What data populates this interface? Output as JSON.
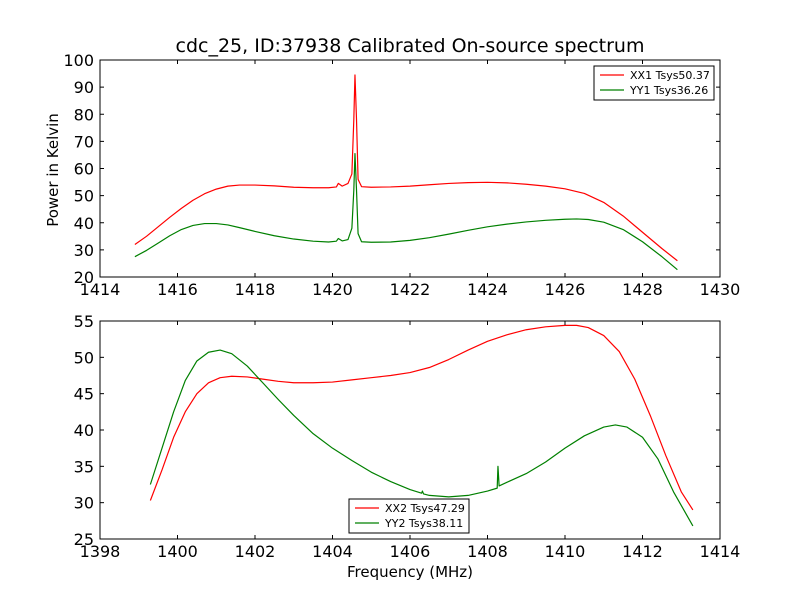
{
  "figure": {
    "title": "cdc_25, ID:37938 Calibrated On-source spectrum",
    "xlabel": "Frequency (MHz)",
    "ylabel": "Power in Kelvin"
  },
  "chart_data": [
    {
      "type": "line",
      "title": "cdc_25, ID:37938 Calibrated On-source spectrum",
      "xlabel": "",
      "ylabel": "Power in Kelvin",
      "xlim": [
        1414,
        1430
      ],
      "ylim": [
        20,
        100
      ],
      "xticks": [
        1414,
        1416,
        1418,
        1420,
        1422,
        1424,
        1426,
        1428,
        1430
      ],
      "yticks": [
        20,
        30,
        40,
        50,
        60,
        70,
        80,
        90,
        100
      ],
      "grid": false,
      "legend_position": "top-right",
      "series": [
        {
          "name": "XX1 Tsys50.37",
          "color": "#ff0000",
          "points": [
            [
              1414.9,
              32
            ],
            [
              1415.2,
              35
            ],
            [
              1415.5,
              38.5
            ],
            [
              1415.8,
              42
            ],
            [
              1416.1,
              45.3
            ],
            [
              1416.4,
              48.3
            ],
            [
              1416.7,
              50.7
            ],
            [
              1417.0,
              52.4
            ],
            [
              1417.3,
              53.5
            ],
            [
              1417.6,
              53.9
            ],
            [
              1418.0,
              53.9
            ],
            [
              1418.5,
              53.6
            ],
            [
              1419.0,
              53.1
            ],
            [
              1419.5,
              52.9
            ],
            [
              1419.9,
              52.9
            ],
            [
              1420.1,
              53.2
            ],
            [
              1420.15,
              54.5
            ],
            [
              1420.25,
              53.5
            ],
            [
              1420.4,
              54.5
            ],
            [
              1420.5,
              58
            ],
            [
              1420.55,
              78
            ],
            [
              1420.58,
              94.5
            ],
            [
              1420.62,
              78
            ],
            [
              1420.66,
              56
            ],
            [
              1420.75,
              53.3
            ],
            [
              1421.0,
              53.1
            ],
            [
              1421.5,
              53.2
            ],
            [
              1422.0,
              53.5
            ],
            [
              1422.5,
              54.0
            ],
            [
              1423.0,
              54.5
            ],
            [
              1423.5,
              54.8
            ],
            [
              1424.0,
              54.9
            ],
            [
              1424.5,
              54.7
            ],
            [
              1425.0,
              54.2
            ],
            [
              1425.5,
              53.5
            ],
            [
              1426.0,
              52.5
            ],
            [
              1426.5,
              50.8
            ],
            [
              1427.0,
              47.5
            ],
            [
              1427.5,
              42.5
            ],
            [
              1428.0,
              36.5
            ],
            [
              1428.5,
              30.5
            ],
            [
              1428.9,
              26
            ]
          ]
        },
        {
          "name": "YY1 Tsys36.26",
          "color": "#008000",
          "points": [
            [
              1414.9,
              27.5
            ],
            [
              1415.2,
              29.8
            ],
            [
              1415.5,
              32.5
            ],
            [
              1415.8,
              35.2
            ],
            [
              1416.1,
              37.5
            ],
            [
              1416.4,
              39.0
            ],
            [
              1416.7,
              39.7
            ],
            [
              1417.0,
              39.7
            ],
            [
              1417.3,
              39.2
            ],
            [
              1417.6,
              38.2
            ],
            [
              1418.0,
              36.8
            ],
            [
              1418.5,
              35.2
            ],
            [
              1419.0,
              34.0
            ],
            [
              1419.5,
              33.2
            ],
            [
              1419.9,
              32.9
            ],
            [
              1420.1,
              33.2
            ],
            [
              1420.15,
              34.2
            ],
            [
              1420.25,
              33.3
            ],
            [
              1420.4,
              33.8
            ],
            [
              1420.5,
              38
            ],
            [
              1420.55,
              52
            ],
            [
              1420.58,
              65.5
            ],
            [
              1420.62,
              52
            ],
            [
              1420.66,
              36
            ],
            [
              1420.75,
              33.0
            ],
            [
              1421.0,
              32.8
            ],
            [
              1421.5,
              32.9
            ],
            [
              1422.0,
              33.5
            ],
            [
              1422.5,
              34.5
            ],
            [
              1423.0,
              35.8
            ],
            [
              1423.5,
              37.2
            ],
            [
              1424.0,
              38.5
            ],
            [
              1424.5,
              39.5
            ],
            [
              1425.0,
              40.3
            ],
            [
              1425.5,
              40.9
            ],
            [
              1426.0,
              41.3
            ],
            [
              1426.3,
              41.4
            ],
            [
              1426.6,
              41.2
            ],
            [
              1427.0,
              40.2
            ],
            [
              1427.5,
              37.5
            ],
            [
              1428.0,
              33.0
            ],
            [
              1428.5,
              27.5
            ],
            [
              1428.9,
              22.7
            ]
          ]
        }
      ]
    },
    {
      "type": "line",
      "title": "",
      "xlabel": "Frequency (MHz)",
      "ylabel": "",
      "xlim": [
        1398,
        1414
      ],
      "ylim": [
        25,
        55
      ],
      "xticks": [
        1398,
        1400,
        1402,
        1404,
        1406,
        1408,
        1410,
        1412,
        1414
      ],
      "yticks": [
        25,
        30,
        35,
        40,
        45,
        50,
        55
      ],
      "grid": false,
      "legend_position": "bottom-center",
      "series": [
        {
          "name": "XX2 Tsys47.29",
          "color": "#ff0000",
          "points": [
            [
              1399.3,
              30.3
            ],
            [
              1399.6,
              34.5
            ],
            [
              1399.9,
              39.0
            ],
            [
              1400.2,
              42.5
            ],
            [
              1400.5,
              45.0
            ],
            [
              1400.8,
              46.5
            ],
            [
              1401.1,
              47.2
            ],
            [
              1401.4,
              47.4
            ],
            [
              1401.8,
              47.3
            ],
            [
              1402.2,
              47.0
            ],
            [
              1402.6,
              46.7
            ],
            [
              1403.0,
              46.5
            ],
            [
              1403.5,
              46.5
            ],
            [
              1404.0,
              46.6
            ],
            [
              1404.5,
              46.9
            ],
            [
              1405.0,
              47.2
            ],
            [
              1405.5,
              47.5
            ],
            [
              1406.0,
              47.9
            ],
            [
              1406.5,
              48.6
            ],
            [
              1407.0,
              49.7
            ],
            [
              1407.5,
              51.0
            ],
            [
              1408.0,
              52.2
            ],
            [
              1408.5,
              53.1
            ],
            [
              1409.0,
              53.8
            ],
            [
              1409.5,
              54.2
            ],
            [
              1410.0,
              54.4
            ],
            [
              1410.3,
              54.4
            ],
            [
              1410.6,
              54.1
            ],
            [
              1411.0,
              53.0
            ],
            [
              1411.4,
              50.8
            ],
            [
              1411.8,
              47.0
            ],
            [
              1412.2,
              42.0
            ],
            [
              1412.6,
              36.5
            ],
            [
              1413.0,
              31.5
            ],
            [
              1413.3,
              29.0
            ]
          ]
        },
        {
          "name": "YY2 Tsys38.11",
          "color": "#008000",
          "points": [
            [
              1399.3,
              32.5
            ],
            [
              1399.6,
              37.5
            ],
            [
              1399.9,
              42.5
            ],
            [
              1400.2,
              46.8
            ],
            [
              1400.5,
              49.5
            ],
            [
              1400.8,
              50.7
            ],
            [
              1401.1,
              51.0
            ],
            [
              1401.4,
              50.5
            ],
            [
              1401.8,
              48.8
            ],
            [
              1402.2,
              46.5
            ],
            [
              1402.6,
              44.2
            ],
            [
              1403.0,
              42.0
            ],
            [
              1403.5,
              39.5
            ],
            [
              1404.0,
              37.5
            ],
            [
              1404.5,
              35.8
            ],
            [
              1405.0,
              34.2
            ],
            [
              1405.5,
              32.9
            ],
            [
              1406.0,
              31.8
            ],
            [
              1406.3,
              31.3
            ],
            [
              1406.32,
              31.6
            ],
            [
              1406.35,
              31.2
            ],
            [
              1406.5,
              31.0
            ],
            [
              1407.0,
              30.8
            ],
            [
              1407.5,
              31.0
            ],
            [
              1408.0,
              31.6
            ],
            [
              1408.25,
              32.0
            ],
            [
              1408.27,
              35.0
            ],
            [
              1408.3,
              32.3
            ],
            [
              1408.5,
              32.8
            ],
            [
              1409.0,
              34.0
            ],
            [
              1409.5,
              35.6
            ],
            [
              1410.0,
              37.5
            ],
            [
              1410.5,
              39.2
            ],
            [
              1411.0,
              40.4
            ],
            [
              1411.3,
              40.7
            ],
            [
              1411.6,
              40.4
            ],
            [
              1412.0,
              39.0
            ],
            [
              1412.4,
              36.0
            ],
            [
              1412.8,
              31.5
            ],
            [
              1413.3,
              26.8
            ]
          ]
        }
      ]
    }
  ]
}
